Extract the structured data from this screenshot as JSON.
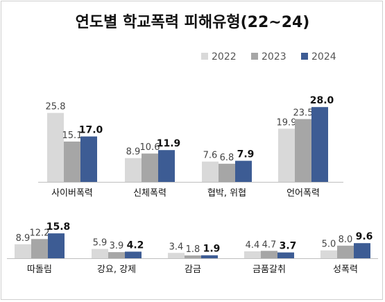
{
  "title": "연도별 학교폭력 피해유형(22~24)",
  "colors": {
    "2022": "#d9d9d9",
    "2023": "#a6a6a6",
    "2024": "#3d5c94"
  },
  "chart_data": {
    "type": "bar",
    "title": "연도별 학교폭력 피해유형(22~24)",
    "legend": [
      "2022",
      "2023",
      "2024"
    ],
    "legend_placement": "top-right",
    "grid": false,
    "categories": [
      "사이버폭력",
      "신체폭력",
      "협박, 위협",
      "언어폭력",
      "따돌림",
      "강요, 강제",
      "감금",
      "금품갈취",
      "성폭력"
    ],
    "series": [
      {
        "name": "2022",
        "values": [
          25.8,
          8.9,
          7.6,
          19.9,
          8.9,
          5.9,
          3.4,
          4.4,
          5.0
        ]
      },
      {
        "name": "2023",
        "values": [
          15.1,
          10.6,
          6.8,
          23.5,
          12.2,
          3.9,
          1.8,
          4.7,
          8.0
        ]
      },
      {
        "name": "2024",
        "values": [
          17.0,
          11.9,
          7.9,
          28.0,
          15.8,
          4.2,
          1.9,
          3.7,
          9.6
        ]
      }
    ]
  }
}
